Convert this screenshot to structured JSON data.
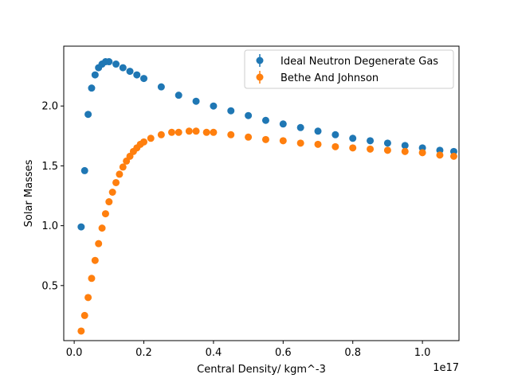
{
  "chart_data": {
    "type": "scatter",
    "title": "",
    "xlabel": "Central Density/ kgm^-3",
    "ylabel": "Solar Masses",
    "x_offset_text": "1e17",
    "x_scale": 1e+17,
    "xlim": [
      -3000000000000000.0,
      1.105e+17
    ],
    "ylim": [
      0.04,
      2.5
    ],
    "x_ticks": [
      0.0,
      2e+16,
      4e+16,
      6e+16,
      8e+16,
      1e+17
    ],
    "x_tick_labels": [
      "0.0",
      "0.2",
      "0.4",
      "0.6",
      "0.8",
      "1.0"
    ],
    "y_ticks": [
      0.5,
      1.0,
      1.5,
      2.0
    ],
    "y_tick_labels": [
      "0.5",
      "1.0",
      "1.5",
      "2.0"
    ],
    "grid": false,
    "legend_position": "top-right",
    "series": [
      {
        "name": "Ideal Neutron Degenerate Gas",
        "color": "#1f77b4",
        "x": [
          2000000000000000.0,
          3000000000000000.0,
          4000000000000000.0,
          5000000000000000.0,
          6000000000000000.0,
          7000000000000000.0,
          8000000000000000.0,
          9000000000000000.0,
          1e+16,
          1.2e+16,
          1.4e+16,
          1.6e+16,
          1.8e+16,
          2e+16,
          2.5e+16,
          3e+16,
          3.5e+16,
          4e+16,
          4.5e+16,
          5e+16,
          5.5e+16,
          6e+16,
          6.5e+16,
          7e+16,
          7.5e+16,
          8e+16,
          8.5e+16,
          9e+16,
          9.5e+16,
          1e+17,
          1.05e+17,
          1.09e+17
        ],
        "y": [
          0.99,
          1.46,
          1.93,
          2.15,
          2.26,
          2.32,
          2.35,
          2.37,
          2.37,
          2.35,
          2.32,
          2.29,
          2.26,
          2.23,
          2.16,
          2.09,
          2.04,
          2.0,
          1.96,
          1.92,
          1.88,
          1.85,
          1.82,
          1.79,
          1.76,
          1.73,
          1.71,
          1.69,
          1.67,
          1.65,
          1.63,
          1.62
        ]
      },
      {
        "name": "Bethe And Johnson",
        "color": "#ff7f0e",
        "x": [
          2000000000000000.0,
          3000000000000000.0,
          4000000000000000.0,
          5000000000000000.0,
          6000000000000000.0,
          7000000000000000.0,
          8000000000000000.0,
          9000000000000000.0,
          1e+16,
          1.1e+16,
          1.2e+16,
          1.3e+16,
          1.4e+16,
          1.5e+16,
          1.6e+16,
          1.7e+16,
          1.8e+16,
          1.9e+16,
          2e+16,
          2.2e+16,
          2.5e+16,
          2.8e+16,
          3e+16,
          3.3e+16,
          3.5e+16,
          3.8e+16,
          4e+16,
          4.5e+16,
          5e+16,
          5.5e+16,
          6e+16,
          6.5e+16,
          7e+16,
          7.5e+16,
          8e+16,
          8.5e+16,
          9e+16,
          9.5e+16,
          1e+17,
          1.05e+17,
          1.09e+17
        ],
        "y": [
          0.12,
          0.25,
          0.4,
          0.56,
          0.71,
          0.85,
          0.98,
          1.1,
          1.2,
          1.28,
          1.36,
          1.43,
          1.49,
          1.54,
          1.58,
          1.62,
          1.65,
          1.68,
          1.7,
          1.73,
          1.76,
          1.78,
          1.78,
          1.79,
          1.79,
          1.78,
          1.78,
          1.76,
          1.74,
          1.72,
          1.71,
          1.69,
          1.68,
          1.66,
          1.65,
          1.64,
          1.63,
          1.62,
          1.61,
          1.59,
          1.58
        ]
      }
    ]
  }
}
